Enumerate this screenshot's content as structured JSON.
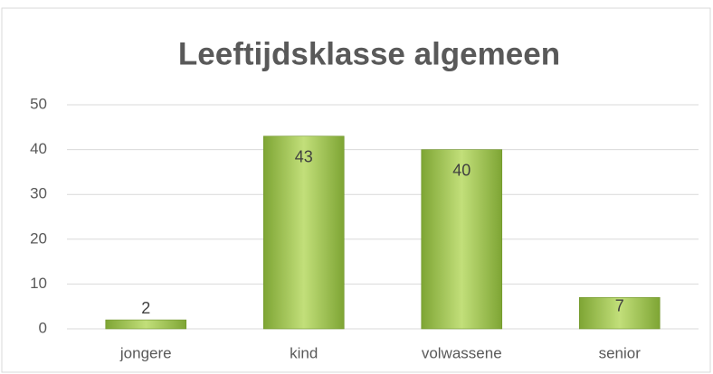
{
  "chart_data": {
    "type": "bar",
    "title": "Leeftijdsklasse algemeen",
    "categories": [
      "jongere",
      "kind",
      "volwassene",
      "senior"
    ],
    "values": [
      2,
      43,
      40,
      7
    ],
    "color": "#9bc44a",
    "ylim": [
      0,
      50
    ],
    "yticks": [
      0,
      10,
      20,
      30,
      40,
      50
    ],
    "grid": true
  }
}
